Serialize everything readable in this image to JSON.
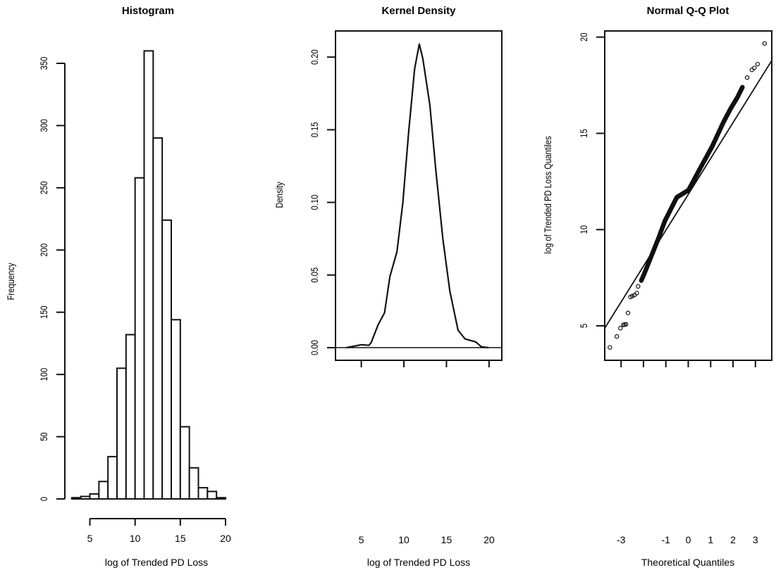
{
  "chart_data": [
    {
      "type": "bar",
      "title": "Histogram",
      "xlabel": "log of Trended PD Loss",
      "ylabel": "Frequency",
      "bin_edges": [
        3,
        4,
        5,
        6,
        7,
        8,
        9,
        10,
        11,
        12,
        13,
        14,
        15,
        16,
        17,
        18,
        19,
        20
      ],
      "values": [
        1,
        2,
        4,
        14,
        34,
        105,
        132,
        258,
        360,
        290,
        224,
        144,
        58,
        25,
        9,
        6,
        1
      ],
      "xticks": [
        5,
        10,
        15,
        20
      ],
      "yticks": [
        0,
        50,
        100,
        150,
        200,
        250,
        300,
        350
      ],
      "xlim": [
        3,
        20
      ],
      "ylim": [
        0,
        360
      ]
    },
    {
      "type": "line",
      "title": "Kernel Density",
      "xlabel": "log of Trended PD Loss",
      "ylabel": "Density",
      "x": [
        3.26,
        5.0,
        5.9,
        6.16,
        6.99,
        7.73,
        8.36,
        9.19,
        9.88,
        10.57,
        11.26,
        11.81,
        12.22,
        13.05,
        13.74,
        14.57,
        15.39,
        16.36,
        17.19,
        18.43,
        19.1,
        19.94
      ],
      "y": [
        0,
        0.002,
        0.0016,
        0.0035,
        0.016,
        0.024,
        0.049,
        0.066,
        0.1,
        0.149,
        0.192,
        0.209,
        0.199,
        0.167,
        0.123,
        0.075,
        0.039,
        0.012,
        0.006,
        0.004,
        0.0006,
        0
      ],
      "xticks": [
        5,
        10,
        15,
        20
      ],
      "yticks": [
        0.0,
        0.05,
        0.1,
        0.15,
        0.2
      ],
      "ytick_labels": [
        "0.00",
        "0.05",
        "0.10",
        "0.15",
        "0.20"
      ],
      "xlim": [
        1.97,
        21.5
      ],
      "ylim": [
        -0.0087,
        0.218
      ],
      "hline": 0
    },
    {
      "type": "scatter",
      "title": "Normal Q-Q Plot",
      "xlabel": "Theoretical Quantiles",
      "ylabel": "log of Trended PD Loss Quantiles",
      "points": [
        [
          -3.5,
          3.88
        ],
        [
          -3.19,
          4.45
        ],
        [
          -3.03,
          4.88
        ],
        [
          -2.9,
          5.05
        ],
        [
          -2.84,
          5.07
        ],
        [
          -2.78,
          5.08
        ],
        [
          -2.69,
          5.67
        ],
        [
          -2.58,
          6.5
        ],
        [
          -2.5,
          6.55
        ],
        [
          -2.4,
          6.6
        ],
        [
          -2.3,
          6.7
        ],
        [
          -2.24,
          7.05
        ],
        [
          -2.1,
          7.35
        ],
        [
          -1.98,
          7.66
        ],
        [
          -1.77,
          8.27
        ],
        [
          -1.35,
          9.49
        ],
        [
          -1.04,
          10.46
        ],
        [
          -0.51,
          11.68
        ],
        [
          0.01,
          12.05
        ],
        [
          0.54,
          13.2
        ],
        [
          1.06,
          14.3
        ],
        [
          1.58,
          15.6
        ],
        [
          1.9,
          16.3
        ],
        [
          2.21,
          16.9
        ],
        [
          2.42,
          17.4
        ],
        [
          2.63,
          17.9
        ],
        [
          2.84,
          18.3
        ],
        [
          2.95,
          18.4
        ],
        [
          3.1,
          18.6
        ],
        [
          3.41,
          19.67
        ]
      ],
      "qq_line": {
        "intercept": 11.83,
        "slope": 1.864
      },
      "xticks": [
        -3,
        -2,
        -1,
        0,
        1,
        2,
        3
      ],
      "xtick_labels": [
        "-3",
        "",
        "-1",
        "0",
        "1",
        "2",
        "3"
      ],
      "yticks": [
        5,
        10,
        15,
        20
      ],
      "xlim": [
        -3.73,
        3.73
      ],
      "ylim": [
        3.21,
        20.32
      ]
    }
  ]
}
